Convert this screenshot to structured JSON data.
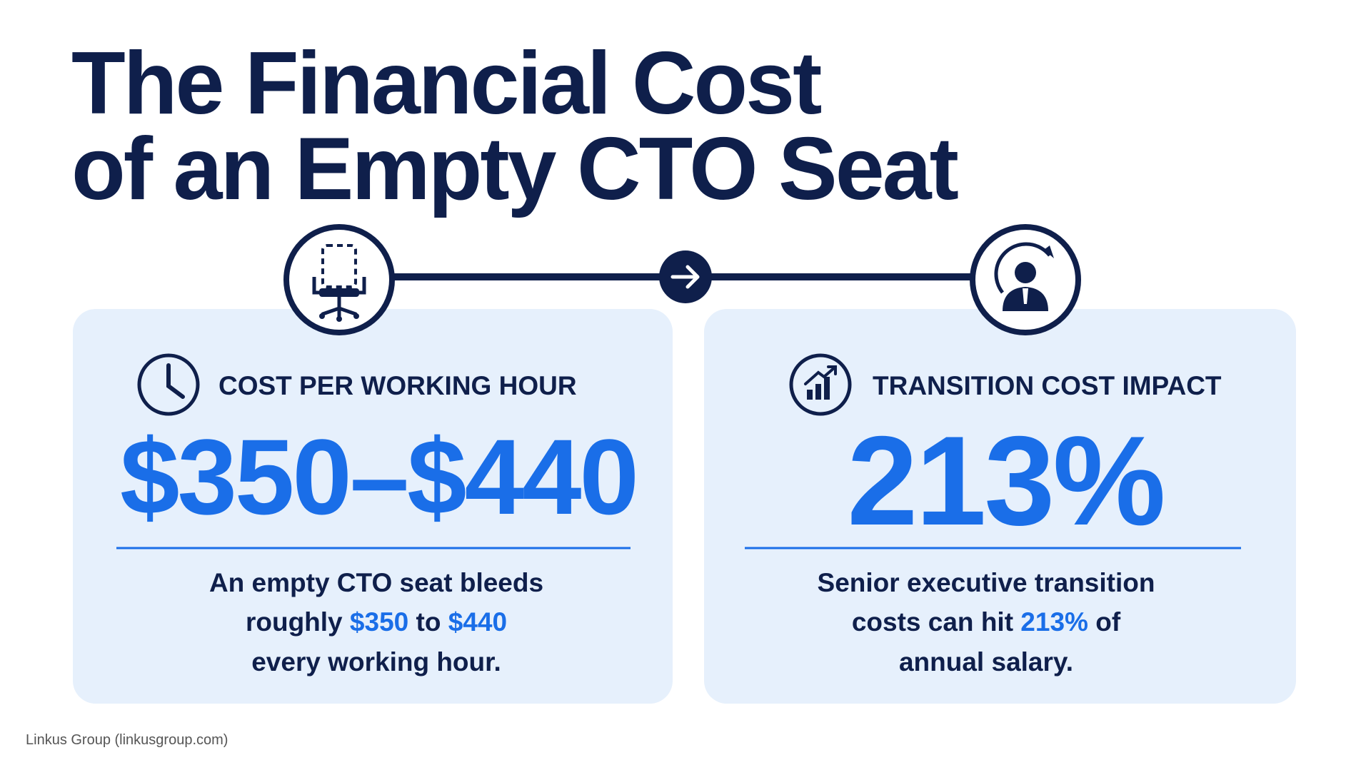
{
  "title_lines": [
    "The Financial Cost",
    "of an Empty CTO Seat"
  ],
  "cards": [
    {
      "heading": "COST PER WORKING HOUR",
      "value": "$350–$440",
      "description_lines": [
        [
          {
            "text": "An empty CTO seat bleeds"
          }
        ],
        [
          {
            "text": "roughly "
          },
          {
            "text": "$350",
            "highlight": true
          },
          {
            "text": " to "
          },
          {
            "text": "$440",
            "highlight": true
          }
        ],
        [
          {
            "text": "every working hour."
          }
        ]
      ]
    },
    {
      "heading": "TRANSITION COST IMPACT",
      "value": "213%",
      "description_lines": [
        [
          {
            "text": "Senior executive transition"
          }
        ],
        [
          {
            "text": "costs can hit "
          },
          {
            "text": "213%",
            "highlight": true
          },
          {
            "text": " of"
          }
        ],
        [
          {
            "text": "annual salary."
          }
        ]
      ]
    }
  ],
  "footer": "Linkus Group (linkusgroup.com)"
}
